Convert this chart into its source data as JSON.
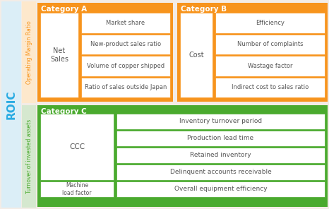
{
  "bg_color": "#f3ece6",
  "roic_bg": "#dbeef7",
  "roic_text": "#29abe2",
  "roic_label": "ROIC",
  "op_margin_bg": "#fde8cc",
  "op_margin_text": "#f7941d",
  "op_margin_label": "Operating Margin Ratio",
  "turnover_bg": "#d5e8cf",
  "turnover_text": "#4aaa2e",
  "turnover_label": "Turnover of invested assets",
  "cat_a_color": "#f7941d",
  "cat_b_color": "#f7941d",
  "cat_c_color": "#4aaa2e",
  "cat_a_title": "Category A",
  "cat_b_title": "Category B",
  "cat_c_title": "Category C",
  "net_sales_label": "Net\nSales",
  "cost_label": "Cost",
  "ccc_label": "CCC",
  "machine_label": "Machine\nload factor",
  "cat_a_items": [
    "Market share",
    "New-product sales ratio",
    "Volume of copper shipped",
    "Ratio of sales outside Japan"
  ],
  "cat_b_items": [
    "Efficiency",
    "Number of complaints",
    "Wastage factor",
    "Indirect cost to sales ratio"
  ],
  "cat_c_items": [
    "Inventory turnover period",
    "Production lead time",
    "Retained inventory",
    "Delinquent accounts receivable"
  ],
  "cat_c_bottom": "Overall equipment efficiency",
  "white": "#ffffff",
  "box_text_color": "#555555"
}
